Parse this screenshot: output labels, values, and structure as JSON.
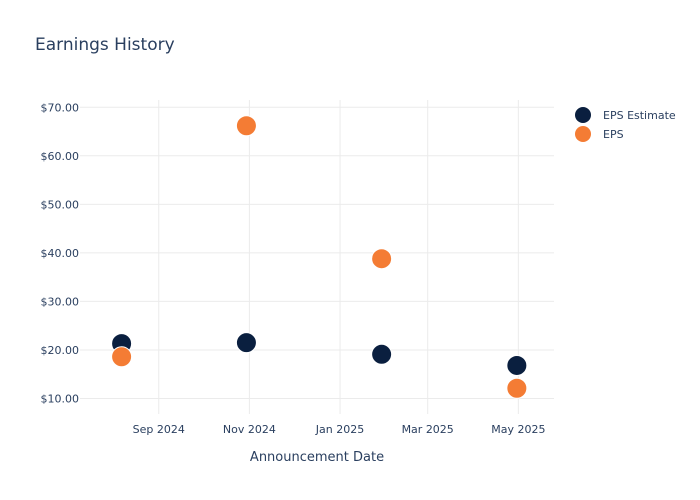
{
  "chart_data": {
    "type": "scatter",
    "title": "Earnings History",
    "xlabel": "Announcement Date",
    "ylabel": "",
    "x_axis_type": "date",
    "xlim": [
      "2024-07-10",
      "2025-05-25"
    ],
    "ylim": [
      6.8,
      71.5
    ],
    "x_ticks": [
      {
        "date": "2024-09-01",
        "label": "Sep 2024"
      },
      {
        "date": "2024-11-01",
        "label": "Nov 2024"
      },
      {
        "date": "2025-01-01",
        "label": "Jan 2025"
      },
      {
        "date": "2025-03-01",
        "label": "Mar 2025"
      },
      {
        "date": "2025-05-01",
        "label": "May 2025"
      }
    ],
    "y_ticks": [
      {
        "value": 10,
        "label": "$10.00"
      },
      {
        "value": 20,
        "label": "$20.00"
      },
      {
        "value": 30,
        "label": "$30.00"
      },
      {
        "value": 40,
        "label": "$40.00"
      },
      {
        "value": 50,
        "label": "$50.00"
      },
      {
        "value": 60,
        "label": "$60.00"
      },
      {
        "value": 70,
        "label": "$70.00"
      }
    ],
    "grid": true,
    "legend_position": "top-right",
    "series": [
      {
        "name": "EPS Estimate",
        "color": "#0a1f3f",
        "points": [
          {
            "x": "2024-08-07",
            "y": 21.3
          },
          {
            "x": "2024-10-30",
            "y": 21.5
          },
          {
            "x": "2025-01-29",
            "y": 19.1
          },
          {
            "x": "2025-04-30",
            "y": 16.8
          }
        ]
      },
      {
        "name": "EPS",
        "color": "#f47c34",
        "points": [
          {
            "x": "2024-08-07",
            "y": 18.6
          },
          {
            "x": "2024-10-30",
            "y": 66.2
          },
          {
            "x": "2025-01-29",
            "y": 38.8
          },
          {
            "x": "2025-04-30",
            "y": 12.1
          }
        ]
      }
    ]
  }
}
